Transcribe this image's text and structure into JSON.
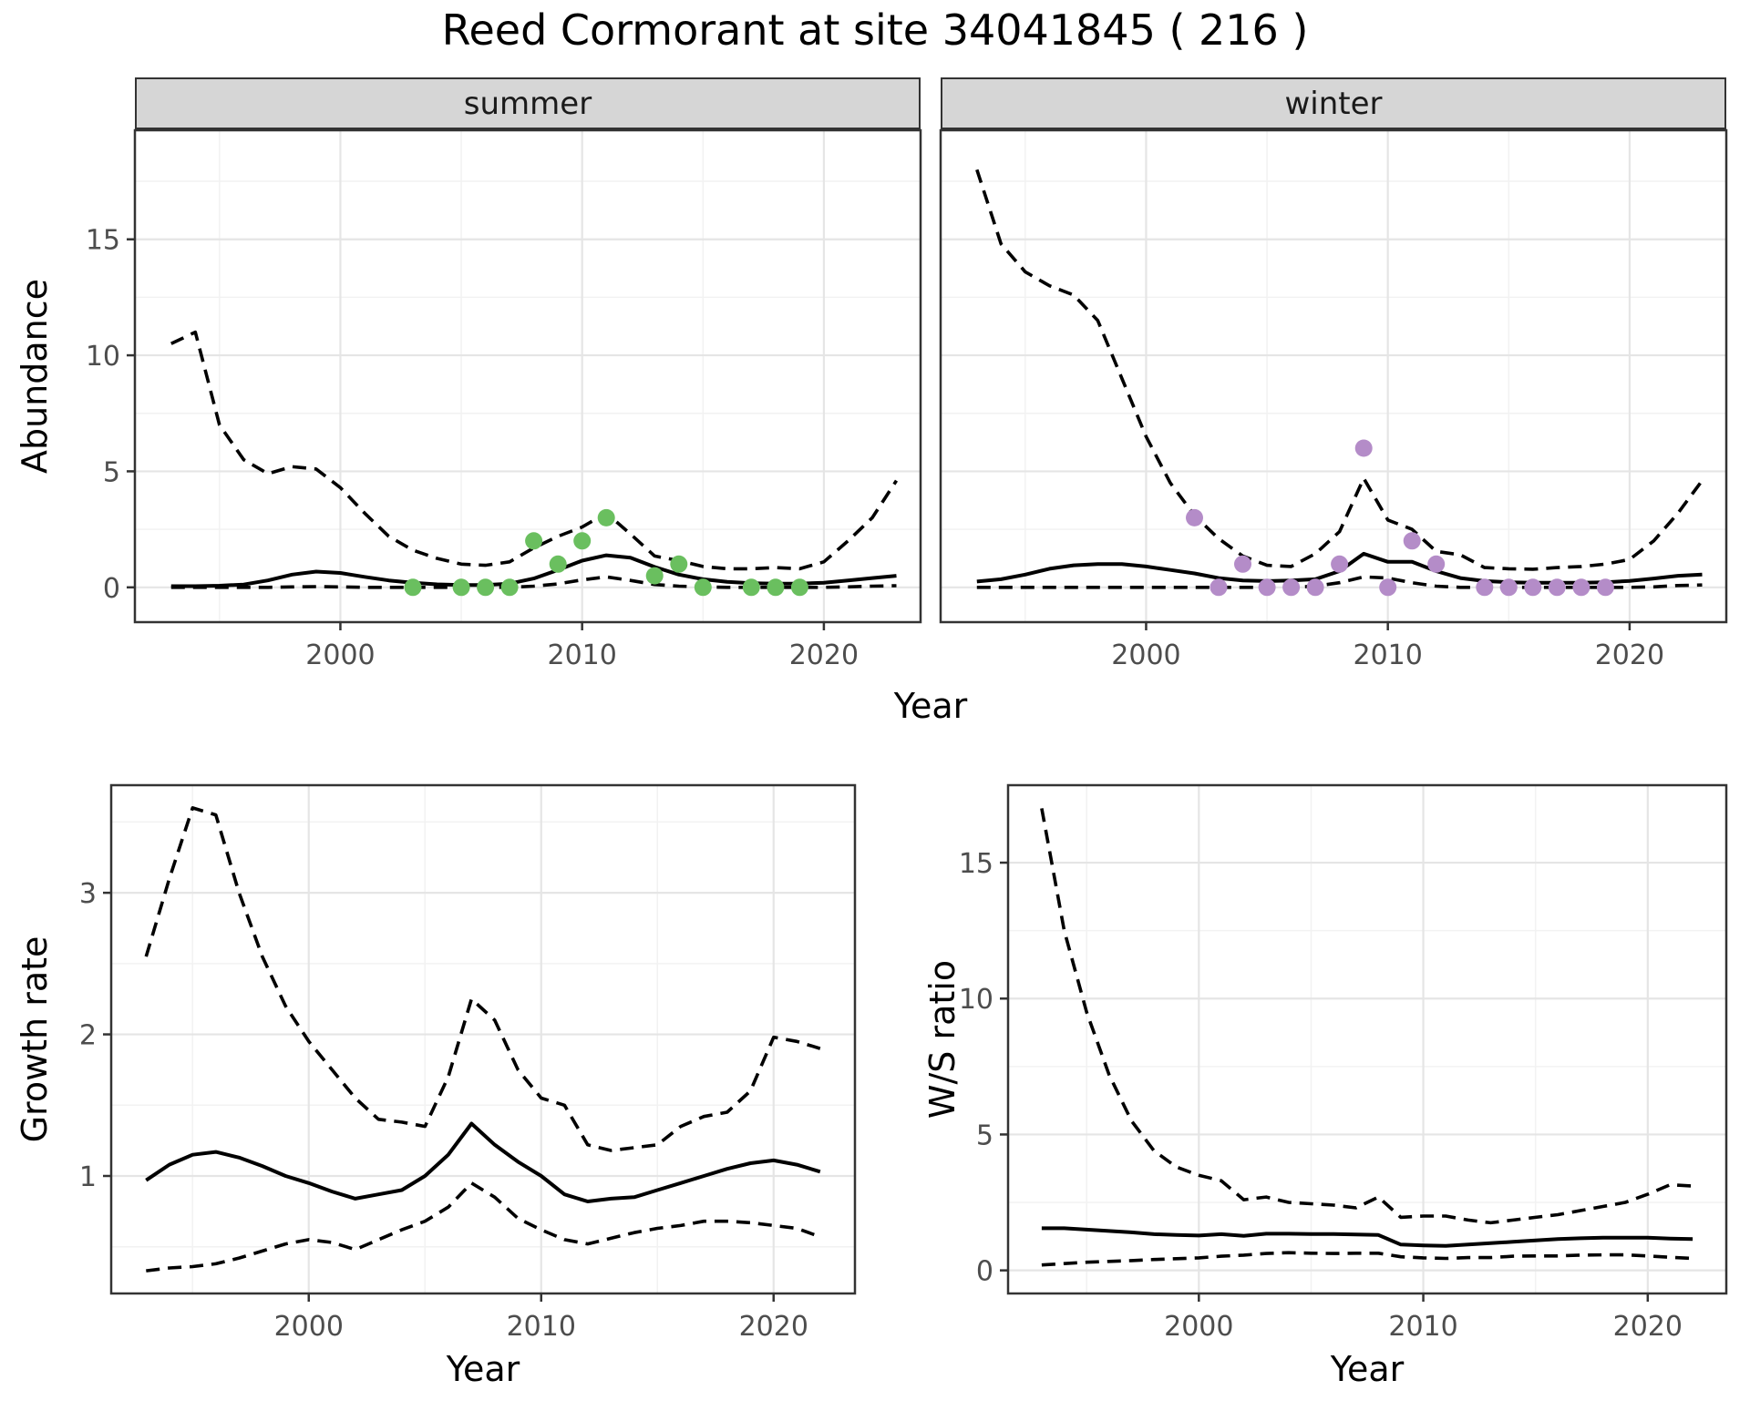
{
  "title": "Reed Cormorant at site 34041845 ( 216 )",
  "labels": {
    "abundance": "Abundance",
    "year": "Year",
    "growth_rate": "Growth rate",
    "ws_ratio": "W/S ratio"
  },
  "facets": {
    "summer": "summer",
    "winter": "winter"
  },
  "colors": {
    "summer_points": "#6abf5f",
    "winter_points": "#b48cc8",
    "series_line": "#000000",
    "tick_text": "#4d4d4d",
    "strip_fill": "#d6d6d6",
    "strip_border": "#333333",
    "panel_border": "#333333",
    "grid_major": "#e5e5e5",
    "grid_minor": "#f2f2f2",
    "background": "#ffffff"
  },
  "chart_data": [
    {
      "id": "abundance_summer",
      "type": "line",
      "facet_label": "summer",
      "xlabel": "Year",
      "ylabel": "Abundance",
      "xlim": [
        1991.5,
        2024.0
      ],
      "ylim": [
        -1.5,
        19.7
      ],
      "xticks": [
        2000,
        2010,
        2020
      ],
      "yticks": [
        0,
        5,
        10,
        15
      ],
      "xminor": [
        1995,
        2005,
        2015
      ],
      "yminor": [
        2.5,
        7.5,
        12.5,
        17.5
      ],
      "show_yticklabels": true,
      "x": [
        1993,
        1994,
        1995,
        1996,
        1997,
        1998,
        1999,
        2000,
        2001,
        2002,
        2003,
        2004,
        2005,
        2006,
        2007,
        2008,
        2009,
        2010,
        2011,
        2012,
        2013,
        2014,
        2015,
        2016,
        2017,
        2018,
        2019,
        2020,
        2021,
        2022,
        2023
      ],
      "series": [
        {
          "name": "median",
          "style": "solid",
          "values": [
            0.05,
            0.05,
            0.07,
            0.12,
            0.3,
            0.55,
            0.68,
            0.62,
            0.45,
            0.3,
            0.2,
            0.13,
            0.1,
            0.1,
            0.16,
            0.38,
            0.75,
            1.15,
            1.38,
            1.28,
            0.88,
            0.55,
            0.35,
            0.24,
            0.18,
            0.16,
            0.16,
            0.2,
            0.3,
            0.4,
            0.5
          ]
        },
        {
          "name": "upper_ci",
          "style": "dashed",
          "values": [
            10.5,
            11.0,
            7.0,
            5.5,
            4.9,
            5.2,
            5.1,
            4.3,
            3.2,
            2.2,
            1.6,
            1.25,
            1.0,
            0.95,
            1.1,
            1.7,
            2.2,
            2.6,
            3.2,
            2.3,
            1.35,
            1.15,
            0.9,
            0.8,
            0.8,
            0.85,
            0.8,
            1.1,
            2.0,
            3.0,
            4.6
          ]
        },
        {
          "name": "lower_ci",
          "style": "dashed",
          "values": [
            0,
            0,
            0,
            0,
            0,
            0.02,
            0.03,
            0.02,
            0,
            0,
            0,
            0,
            0,
            0,
            0,
            0.05,
            0.15,
            0.32,
            0.45,
            0.3,
            0.12,
            0.05,
            0.02,
            0,
            0,
            0,
            0,
            0,
            0.02,
            0.05,
            0.07
          ]
        }
      ],
      "observations": {
        "color_key": "summer_points",
        "points": [
          [
            2003,
            0
          ],
          [
            2005,
            0
          ],
          [
            2006,
            0
          ],
          [
            2007,
            0
          ],
          [
            2008,
            2
          ],
          [
            2009,
            1
          ],
          [
            2010,
            2
          ],
          [
            2011,
            3
          ],
          [
            2013,
            0.5
          ],
          [
            2014,
            1
          ],
          [
            2015,
            0
          ],
          [
            2017,
            0
          ],
          [
            2018,
            0
          ],
          [
            2019,
            0
          ]
        ]
      }
    },
    {
      "id": "abundance_winter",
      "type": "line",
      "facet_label": "winter",
      "xlabel": "Year",
      "ylabel": "Abundance",
      "xlim": [
        1991.5,
        2024.0
      ],
      "ylim": [
        -1.5,
        19.7
      ],
      "xticks": [
        2000,
        2010,
        2020
      ],
      "yticks": [
        0,
        5,
        10,
        15
      ],
      "xminor": [
        1995,
        2005,
        2015
      ],
      "yminor": [
        2.5,
        7.5,
        12.5,
        17.5
      ],
      "show_yticklabels": false,
      "x": [
        1993,
        1994,
        1995,
        1996,
        1997,
        1998,
        1999,
        2000,
        2001,
        2002,
        2003,
        2004,
        2005,
        2006,
        2007,
        2008,
        2009,
        2010,
        2011,
        2012,
        2013,
        2014,
        2015,
        2016,
        2017,
        2018,
        2019,
        2020,
        2021,
        2022,
        2023
      ],
      "series": [
        {
          "name": "median",
          "style": "solid",
          "values": [
            0.25,
            0.35,
            0.55,
            0.8,
            0.95,
            1.0,
            1.0,
            0.9,
            0.75,
            0.6,
            0.4,
            0.3,
            0.27,
            0.3,
            0.35,
            0.7,
            1.45,
            1.1,
            1.1,
            0.7,
            0.4,
            0.27,
            0.22,
            0.2,
            0.2,
            0.2,
            0.22,
            0.28,
            0.38,
            0.5,
            0.55
          ]
        },
        {
          "name": "upper_ci",
          "style": "dashed",
          "values": [
            18.0,
            14.8,
            13.6,
            13.0,
            12.6,
            11.5,
            9.0,
            6.5,
            4.5,
            3.1,
            2.1,
            1.35,
            0.95,
            0.9,
            1.45,
            2.4,
            4.7,
            2.9,
            2.5,
            1.55,
            1.4,
            0.85,
            0.8,
            0.78,
            0.85,
            0.9,
            1.0,
            1.2,
            2.0,
            3.2,
            4.6
          ]
        },
        {
          "name": "lower_ci",
          "style": "dashed",
          "values": [
            0,
            0,
            0,
            0,
            0,
            0,
            0,
            0,
            0,
            0,
            0,
            0,
            0,
            0,
            0.05,
            0.2,
            0.45,
            0.4,
            0.2,
            0.05,
            0,
            0,
            0,
            0,
            0,
            0,
            0,
            0,
            0.02,
            0.08,
            0.1
          ]
        }
      ],
      "observations": {
        "color_key": "winter_points",
        "points": [
          [
            2002,
            3
          ],
          [
            2003,
            0
          ],
          [
            2004,
            1
          ],
          [
            2005,
            0
          ],
          [
            2006,
            0
          ],
          [
            2007,
            0
          ],
          [
            2008,
            1
          ],
          [
            2009,
            6
          ],
          [
            2010,
            0
          ],
          [
            2011,
            2
          ],
          [
            2012,
            1
          ],
          [
            2014,
            0
          ],
          [
            2015,
            0
          ],
          [
            2016,
            0
          ],
          [
            2017,
            0
          ],
          [
            2018,
            0
          ],
          [
            2019,
            0
          ]
        ]
      }
    },
    {
      "id": "growth_rate",
      "type": "line",
      "facet_label": "",
      "xlabel": "Year",
      "ylabel": "Growth rate",
      "xlim": [
        1991.5,
        2023.5
      ],
      "ylim": [
        0.17,
        3.76
      ],
      "xticks": [
        2000,
        2010,
        2020
      ],
      "yticks": [
        1,
        2,
        3
      ],
      "xminor": [
        1995,
        2005,
        2015
      ],
      "yminor": [
        0.5,
        1.5,
        2.5,
        3.5
      ],
      "show_yticklabels": true,
      "x": [
        1993,
        1994,
        1995,
        1996,
        1997,
        1998,
        1999,
        2000,
        2001,
        2002,
        2003,
        2004,
        2005,
        2006,
        2007,
        2008,
        2009,
        2010,
        2011,
        2012,
        2013,
        2014,
        2015,
        2016,
        2017,
        2018,
        2019,
        2020,
        2021,
        2022
      ],
      "series": [
        {
          "name": "median",
          "style": "solid",
          "values": [
            0.97,
            1.08,
            1.15,
            1.17,
            1.13,
            1.07,
            1.0,
            0.95,
            0.89,
            0.84,
            0.87,
            0.9,
            1.0,
            1.15,
            1.37,
            1.22,
            1.1,
            1.0,
            0.87,
            0.82,
            0.84,
            0.85,
            0.9,
            0.95,
            1.0,
            1.05,
            1.09,
            1.11,
            1.08,
            1.03
          ]
        },
        {
          "name": "upper_ci",
          "style": "dashed",
          "values": [
            2.55,
            3.1,
            3.6,
            3.55,
            3.0,
            2.55,
            2.2,
            1.95,
            1.75,
            1.55,
            1.4,
            1.38,
            1.35,
            1.7,
            2.25,
            2.1,
            1.75,
            1.55,
            1.5,
            1.22,
            1.18,
            1.2,
            1.22,
            1.35,
            1.42,
            1.45,
            1.6,
            1.98,
            1.95,
            1.9
          ]
        },
        {
          "name": "lower_ci",
          "style": "dashed",
          "values": [
            0.33,
            0.35,
            0.36,
            0.38,
            0.42,
            0.47,
            0.52,
            0.55,
            0.53,
            0.48,
            0.55,
            0.62,
            0.68,
            0.78,
            0.95,
            0.85,
            0.7,
            0.62,
            0.55,
            0.52,
            0.56,
            0.6,
            0.63,
            0.65,
            0.68,
            0.68,
            0.67,
            0.65,
            0.63,
            0.57
          ]
        }
      ],
      "observations": null
    },
    {
      "id": "ws_ratio",
      "type": "line",
      "facet_label": "",
      "xlabel": "Year",
      "ylabel": "W/S ratio",
      "xlim": [
        1991.5,
        2023.5
      ],
      "ylim": [
        -0.85,
        17.85
      ],
      "xticks": [
        2000,
        2010,
        2020
      ],
      "yticks": [
        0,
        5,
        10,
        15
      ],
      "xminor": [
        1995,
        2005,
        2015
      ],
      "yminor": [
        2.5,
        7.5,
        12.5
      ],
      "show_yticklabels": true,
      "x": [
        1993,
        1994,
        1995,
        1996,
        1997,
        1998,
        1999,
        2000,
        2001,
        2002,
        2003,
        2004,
        2005,
        2006,
        2007,
        2008,
        2009,
        2010,
        2011,
        2012,
        2013,
        2014,
        2015,
        2016,
        2017,
        2018,
        2019,
        2020,
        2021,
        2022
      ],
      "series": [
        {
          "name": "median",
          "style": "solid",
          "values": [
            1.55,
            1.55,
            1.5,
            1.45,
            1.4,
            1.33,
            1.3,
            1.28,
            1.33,
            1.27,
            1.35,
            1.35,
            1.34,
            1.34,
            1.32,
            1.3,
            0.95,
            0.92,
            0.9,
            0.95,
            1.0,
            1.05,
            1.1,
            1.15,
            1.18,
            1.2,
            1.2,
            1.2,
            1.17,
            1.15
          ]
        },
        {
          "name": "upper_ci",
          "style": "dashed",
          "values": [
            17.0,
            12.5,
            9.5,
            7.2,
            5.5,
            4.4,
            3.8,
            3.5,
            3.3,
            2.6,
            2.7,
            2.5,
            2.45,
            2.4,
            2.3,
            2.7,
            1.95,
            2.0,
            2.0,
            1.85,
            1.75,
            1.85,
            1.95,
            2.05,
            2.2,
            2.35,
            2.5,
            2.8,
            3.15,
            3.1
          ]
        },
        {
          "name": "lower_ci",
          "style": "dashed",
          "values": [
            0.2,
            0.25,
            0.3,
            0.33,
            0.36,
            0.4,
            0.43,
            0.46,
            0.52,
            0.56,
            0.62,
            0.65,
            0.63,
            0.62,
            0.63,
            0.63,
            0.5,
            0.46,
            0.44,
            0.47,
            0.47,
            0.52,
            0.53,
            0.53,
            0.56,
            0.57,
            0.57,
            0.53,
            0.48,
            0.44
          ]
        }
      ],
      "observations": null
    }
  ]
}
